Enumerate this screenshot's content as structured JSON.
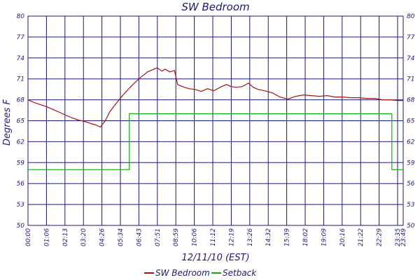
{
  "chart_data": {
    "type": "line",
    "title": "SW Bedroom",
    "xlabel": "12/11/10 (EST)",
    "ylabel": "Degrees F",
    "ylim": [
      50,
      80
    ],
    "yticks": [
      50,
      53,
      56,
      59,
      62,
      65,
      68,
      71,
      74,
      77,
      80
    ],
    "x_tick_labels": [
      "00:00",
      "01:06",
      "02:13",
      "03:20",
      "04:26",
      "05:34",
      "06:43",
      "07:51",
      "08:59",
      "10:06",
      "11:12",
      "12:19",
      "13:26",
      "14:32",
      "15:39",
      "18:02",
      "19:09",
      "20:16",
      "21:22",
      "22:29",
      "23:35",
      "23:49"
    ],
    "x_unit": "hours",
    "xlim": [
      0,
      23.82
    ],
    "grid": true,
    "legend_position": "bottom",
    "colors": {
      "grid": "#1a1a7a",
      "text": "#1a1a7a",
      "sw_bedroom": "#aa1111",
      "setback": "#11aa11"
    },
    "series": [
      {
        "name": "SW Bedroom",
        "color": "#aa1111",
        "x": [
          0.0,
          0.4,
          0.8,
          1.2,
          1.6,
          2.0,
          2.4,
          2.8,
          3.2,
          3.6,
          4.0,
          4.3,
          4.6,
          4.9,
          5.2,
          5.6,
          6.0,
          6.4,
          6.8,
          7.2,
          7.6,
          7.9,
          8.2,
          8.5,
          8.7,
          9.0,
          9.3,
          9.5,
          9.8,
          10.2,
          10.6,
          11.0,
          11.4,
          11.8,
          12.2,
          12.6,
          12.9,
          13.2,
          13.6,
          14.0,
          14.3,
          14.6,
          15.0,
          15.5,
          16.0,
          16.5,
          17.0,
          17.5,
          18.0,
          18.5,
          19.0,
          19.5,
          20.0,
          20.5,
          21.0,
          21.5,
          22.0,
          22.5,
          23.0,
          23.5,
          23.82
        ],
        "values": [
          68.0,
          67.6,
          67.3,
          67.0,
          66.6,
          66.2,
          65.8,
          65.4,
          65.1,
          64.9,
          64.6,
          64.4,
          64.1,
          65.0,
          66.3,
          67.5,
          68.6,
          69.6,
          70.5,
          71.3,
          72.0,
          72.3,
          72.6,
          72.1,
          72.4,
          72.0,
          72.2,
          70.2,
          69.9,
          69.6,
          69.5,
          69.2,
          69.6,
          69.3,
          69.8,
          70.2,
          69.9,
          69.8,
          69.9,
          70.4,
          69.8,
          69.5,
          69.3,
          69.0,
          68.4,
          68.1,
          68.5,
          68.7,
          68.6,
          68.5,
          68.6,
          68.4,
          68.4,
          68.3,
          68.3,
          68.2,
          68.2,
          68.0,
          68.0,
          67.9,
          67.9
        ]
      },
      {
        "name": "Setback",
        "color": "#11aa11",
        "x": [
          0.0,
          6.43,
          6.43,
          23.1,
          23.1,
          23.82
        ],
        "values": [
          58.0,
          58.0,
          66.0,
          66.0,
          58.0,
          58.0
        ]
      }
    ]
  }
}
